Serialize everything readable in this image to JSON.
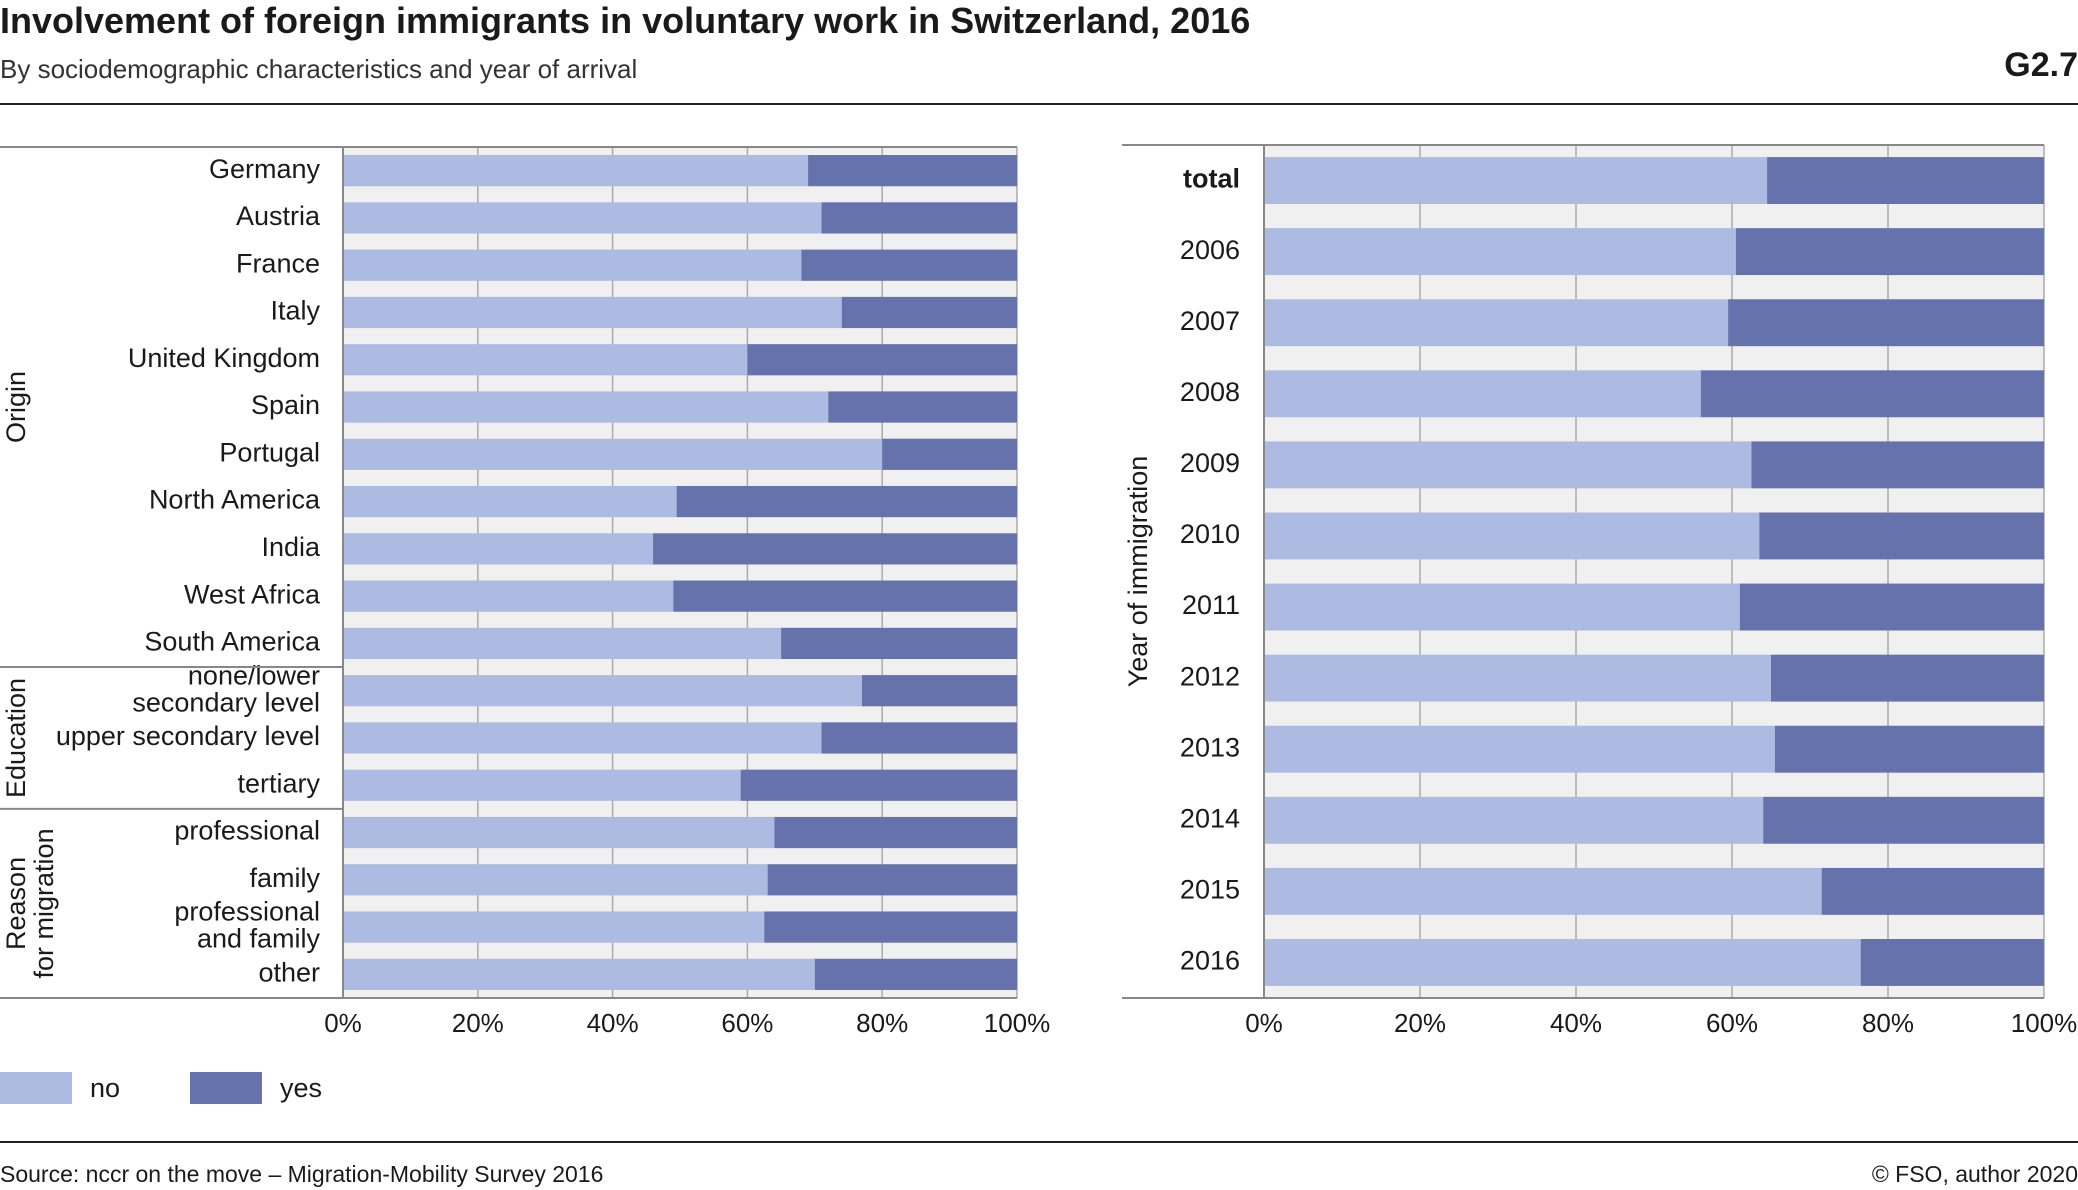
{
  "header": {
    "title": "Involvement of foreign immigrants in voluntary work in Switzerland, 2016",
    "subtitle": "By sociodemographic characteristics and year of arrival",
    "code": "G2.7"
  },
  "legend": {
    "no": "no",
    "yes": "yes"
  },
  "colors": {
    "no": "#adbae2",
    "yes": "#6572ab",
    "band": "#f0f0f0",
    "grid": "#aaaaaa",
    "axis": "#888888"
  },
  "footer": {
    "source": "Source: nccr on the move – Migration-Mobility Survey 2016",
    "copyright": "© FSO, author 2020"
  },
  "chart_data": [
    {
      "type": "bar",
      "orientation": "horizontal",
      "stacked": true,
      "xlim": [
        0,
        100
      ],
      "xticks": [
        "0%",
        "20%",
        "40%",
        "60%",
        "80%",
        "100%"
      ],
      "groups": [
        {
          "label": "Origin",
          "categories": [
            "Germany",
            "Austria",
            "France",
            "Italy",
            "United Kingdom",
            "Spain",
            "Portugal",
            "North America",
            "India",
            "West Africa",
            "South America"
          ]
        },
        {
          "label": "Education",
          "categories": [
            "none/lower secondary level",
            "upper secondary level",
            "tertiary"
          ]
        },
        {
          "label": "Reason for migration",
          "categories": [
            "professional",
            "family",
            "professional and family",
            "other"
          ]
        }
      ],
      "series": [
        {
          "name": "no",
          "values": [
            69,
            71,
            68,
            74,
            60,
            72,
            80,
            49.5,
            46,
            49,
            65,
            77,
            71,
            59,
            64,
            63,
            62.5,
            70
          ]
        },
        {
          "name": "yes",
          "values": [
            31,
            29,
            32,
            26,
            40,
            28,
            20,
            50.5,
            54,
            51,
            35,
            23,
            29,
            41,
            36,
            37,
            37.5,
            30
          ]
        }
      ]
    },
    {
      "type": "bar",
      "orientation": "horizontal",
      "stacked": true,
      "xlim": [
        0,
        100
      ],
      "xticks": [
        "0%",
        "20%",
        "40%",
        "60%",
        "80%",
        "100%"
      ],
      "ylabel": "Year of immigration",
      "categories": [
        "total",
        "2006",
        "2007",
        "2008",
        "2009",
        "2010",
        "2011",
        "2012",
        "2013",
        "2014",
        "2015",
        "2016"
      ],
      "series": [
        {
          "name": "no",
          "values": [
            64.5,
            60.5,
            59.5,
            56,
            62.5,
            63.5,
            61,
            65,
            65.5,
            64,
            71.5,
            76.5
          ]
        },
        {
          "name": "yes",
          "values": [
            35.5,
            39.5,
            40.5,
            44,
            37.5,
            36.5,
            39,
            35,
            34.5,
            36,
            28.5,
            23.5
          ]
        }
      ]
    }
  ]
}
